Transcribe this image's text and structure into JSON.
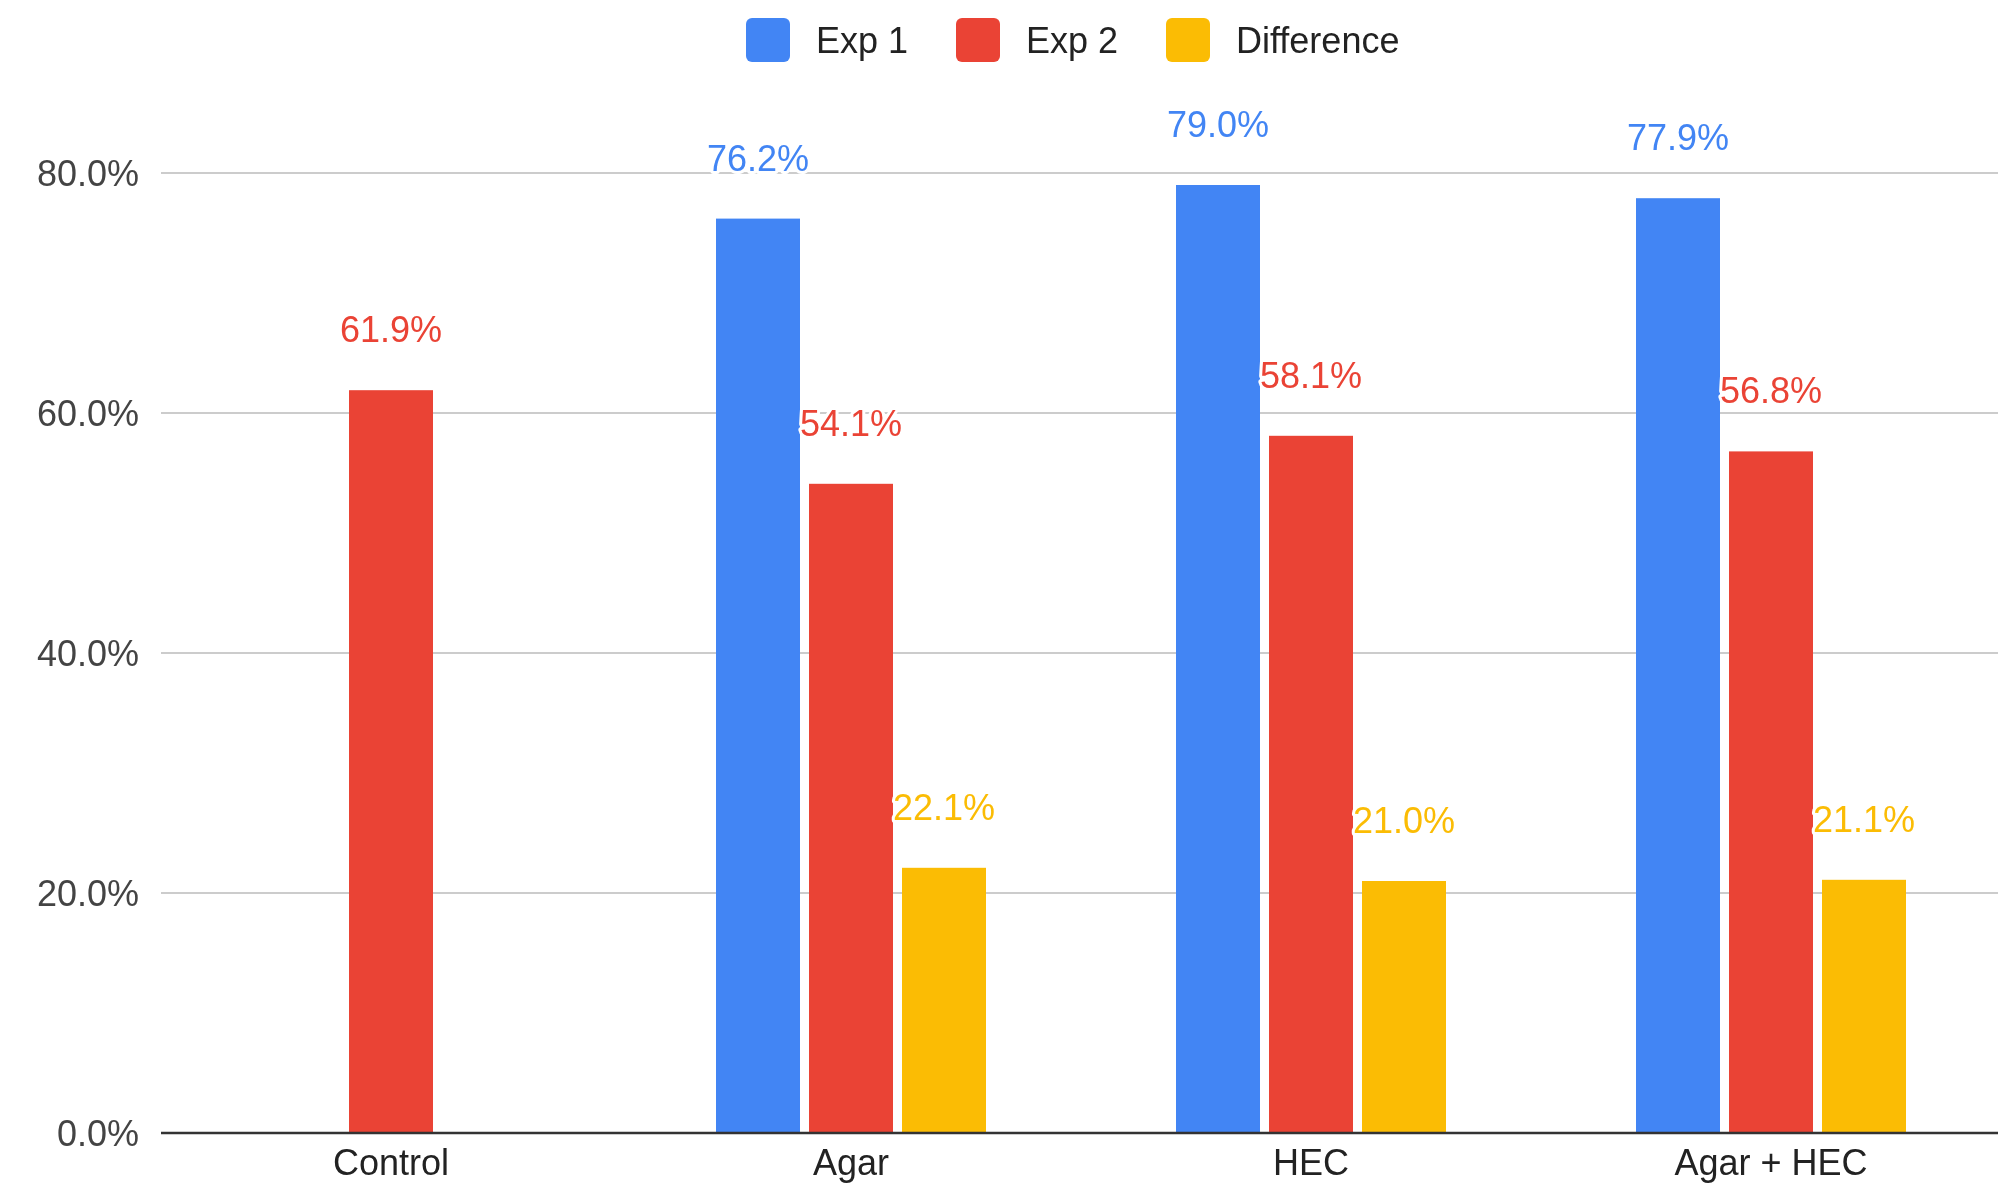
{
  "chart_data": {
    "type": "bar",
    "categories": [
      "Control",
      "Agar",
      "HEC",
      "Agar + HEC"
    ],
    "series": [
      {
        "name": "Exp 1",
        "color": "#4285f4",
        "values": [
          null,
          76.2,
          79.0,
          77.9
        ],
        "value_labels": [
          null,
          "76.2%",
          "79.0%",
          "77.9%"
        ]
      },
      {
        "name": "Exp 2",
        "color": "#ea4335",
        "values": [
          61.9,
          54.1,
          58.1,
          56.8
        ],
        "value_labels": [
          "61.9%",
          "54.1%",
          "58.1%",
          "56.8%"
        ]
      },
      {
        "name": "Difference",
        "color": "#fbbc04",
        "values": [
          null,
          22.1,
          21.0,
          21.1
        ],
        "value_labels": [
          null,
          "22.1%",
          "21.0%",
          "21.1%"
        ]
      }
    ],
    "ylim": [
      0,
      80
    ],
    "yticks": [
      {
        "value": 0,
        "label": "0.0%"
      },
      {
        "value": 20,
        "label": "20.0%"
      },
      {
        "value": 40,
        "label": "40.0%"
      },
      {
        "value": 60,
        "label": "60.0%"
      },
      {
        "value": 80,
        "label": "80.0%"
      }
    ],
    "grid": "y",
    "legend": "top"
  }
}
